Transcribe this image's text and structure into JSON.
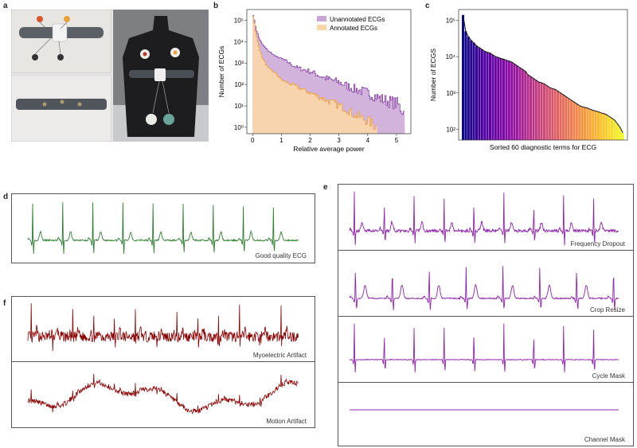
{
  "figure": {
    "panel_labels": {
      "a": "a",
      "b": "b",
      "c": "c",
      "d": "d",
      "e": "e",
      "f": "f"
    },
    "colors": {
      "good": "#2e7d32",
      "aug": "#8e24aa",
      "artifact": "#8b0000",
      "unannotated": "#c9a6d6",
      "annotated": "#fbd6a8",
      "unannotated_line": "#7b2c9a",
      "annotated_line": "#f0a030"
    }
  },
  "panel_d": {
    "caption": "Good quality ECG"
  },
  "panel_e": {
    "captions": [
      "Frequency Dropout",
      "Crop Resize",
      "Cycle Mask",
      "Channel Mask"
    ]
  },
  "panel_f": {
    "captions": [
      "Myoelectric Artifact",
      "Motion Artifact"
    ]
  },
  "chart_data": [
    {
      "type": "area",
      "id": "b",
      "xlabel": "Relative average power",
      "ylabel": "Number of ECGs",
      "xlim": [
        -0.2,
        5.5
      ],
      "ylim_log10": [
        -0.3,
        5.5
      ],
      "xticks": [
        "0",
        "1",
        "2",
        "3",
        "4",
        "5"
      ],
      "xtick_values": [
        0,
        1,
        2,
        3,
        4,
        5
      ],
      "yticks": [
        "10⁰",
        "10¹",
        "10²",
        "10³",
        "10⁴",
        "10⁵"
      ],
      "ytick_values": [
        0,
        1,
        2,
        3,
        4,
        5
      ],
      "legend_position": "top-right",
      "series": [
        {
          "name": "Unannotated ECGs",
          "x": [
            0,
            0.1,
            0.2,
            0.3,
            0.5,
            0.8,
            1.0,
            1.5,
            2.0,
            2.5,
            3.0,
            3.5,
            4.0,
            4.5,
            5.0,
            5.25
          ],
          "log10_counts": [
            5.25,
            4.6,
            4.2,
            3.9,
            3.6,
            3.3,
            3.2,
            2.8,
            2.6,
            2.3,
            2.1,
            1.8,
            1.6,
            1.3,
            1.1,
            0.7
          ]
        },
        {
          "name": "Annotated ECGs",
          "x": [
            0,
            0.1,
            0.2,
            0.3,
            0.5,
            0.8,
            1.0,
            1.5,
            2.0,
            2.5,
            3.0,
            3.2,
            3.5,
            4.0,
            4.3
          ],
          "log10_counts": [
            5.2,
            4.3,
            3.8,
            3.3,
            2.8,
            2.5,
            2.2,
            1.9,
            1.6,
            1.3,
            1.0,
            0.9,
            0.6,
            0.3,
            0.0
          ]
        }
      ]
    },
    {
      "type": "bar",
      "id": "c",
      "xlabel": "Sorted 60 diagnostic terms for ECG",
      "ylabel": "Number of ECGS",
      "ylim_log10": [
        1.7,
        5.3
      ],
      "yticks": [
        "10²",
        "10³",
        "10⁴",
        "10⁵"
      ],
      "ytick_values": [
        2,
        3,
        4,
        5
      ],
      "log10_values": [
        5.15,
        4.7,
        4.55,
        4.45,
        4.38,
        4.3,
        4.25,
        4.2,
        4.15,
        4.12,
        4.1,
        4.05,
        4.0,
        3.98,
        3.95,
        3.93,
        3.9,
        3.88,
        3.85,
        3.8,
        3.75,
        3.7,
        3.65,
        3.6,
        3.5,
        3.45,
        3.4,
        3.35,
        3.3,
        3.28,
        3.25,
        3.2,
        3.15,
        3.12,
        3.1,
        3.05,
        3.0,
        2.95,
        2.9,
        2.85,
        2.8,
        2.75,
        2.7,
        2.65,
        2.62,
        2.6,
        2.58,
        2.55,
        2.52,
        2.5,
        2.48,
        2.45,
        2.43,
        2.4,
        2.35,
        2.3,
        2.25,
        2.15,
        2.05,
        1.9
      ]
    }
  ]
}
